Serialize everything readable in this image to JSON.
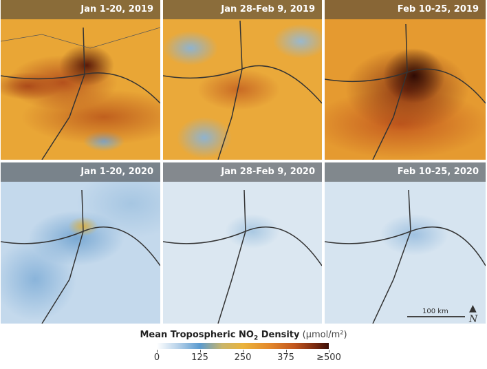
{
  "panels": [
    {
      "label": "Jan 1-20, 2019",
      "year": "2019"
    },
    {
      "label": "Jan 28-Feb 9, 2019",
      "year": "2019"
    },
    {
      "label": "Feb 10-25, 2019",
      "year": "2019"
    },
    {
      "label": "Jan 1-20, 2020",
      "year": "2020"
    },
    {
      "label": "Jan 28-Feb 9, 2020",
      "year": "2020"
    },
    {
      "label": "Feb 10-25, 2020",
      "year": "2020"
    }
  ],
  "legend": {
    "title_main": "Mean Tropospheric NO",
    "title_sub": "2",
    "title_rest": " Density",
    "unit": "(μmol/m²)",
    "ticks": [
      "0",
      "125",
      "250",
      "375",
      "≥500"
    ],
    "colors": [
      "#ffffff",
      "#5b9bd0",
      "#eab33c",
      "#c2561e",
      "#3c0f08"
    ]
  },
  "scale": {
    "label": "100 km"
  },
  "north_icon": "north-arrow-icon"
}
